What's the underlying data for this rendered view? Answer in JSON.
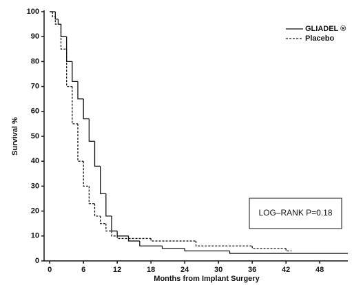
{
  "chart_data": {
    "type": "step",
    "x_label": "Months from Implant Surgery",
    "y_label": "Survival %",
    "annotation": "LOG–RANK P=0.18",
    "legend": "top-right",
    "xlim": [
      -1,
      53
    ],
    "xticks": [
      0,
      6,
      12,
      18,
      24,
      30,
      36,
      42,
      48
    ],
    "ylim": [
      0,
      100
    ],
    "yticks": [
      0,
      10,
      20,
      30,
      40,
      50,
      60,
      70,
      80,
      90,
      100
    ],
    "series": [
      {
        "name": "GLIADEL ®",
        "color": "#111111",
        "dash": "solid",
        "x": [
          0,
          1,
          1.5,
          2,
          3,
          4,
          5,
          6,
          7,
          8,
          9,
          10,
          11,
          12,
          14,
          16,
          20,
          24,
          32,
          53
        ],
        "values": [
          100,
          97,
          95,
          90,
          80,
          72,
          65,
          57,
          48,
          38,
          27,
          18,
          12,
          10,
          8,
          6,
          5,
          4,
          3,
          3
        ]
      },
      {
        "name": "Placebo",
        "color": "#111111",
        "dash": "dashed",
        "x": [
          0,
          0.5,
          1,
          2,
          3,
          4,
          5,
          6,
          7,
          8,
          9,
          10,
          11,
          12,
          18,
          26,
          36,
          42,
          43
        ],
        "values": [
          100,
          98,
          95,
          85,
          70,
          55,
          40,
          30,
          23,
          18,
          15,
          12,
          10,
          9,
          8,
          6,
          5,
          4,
          4
        ]
      }
    ]
  }
}
